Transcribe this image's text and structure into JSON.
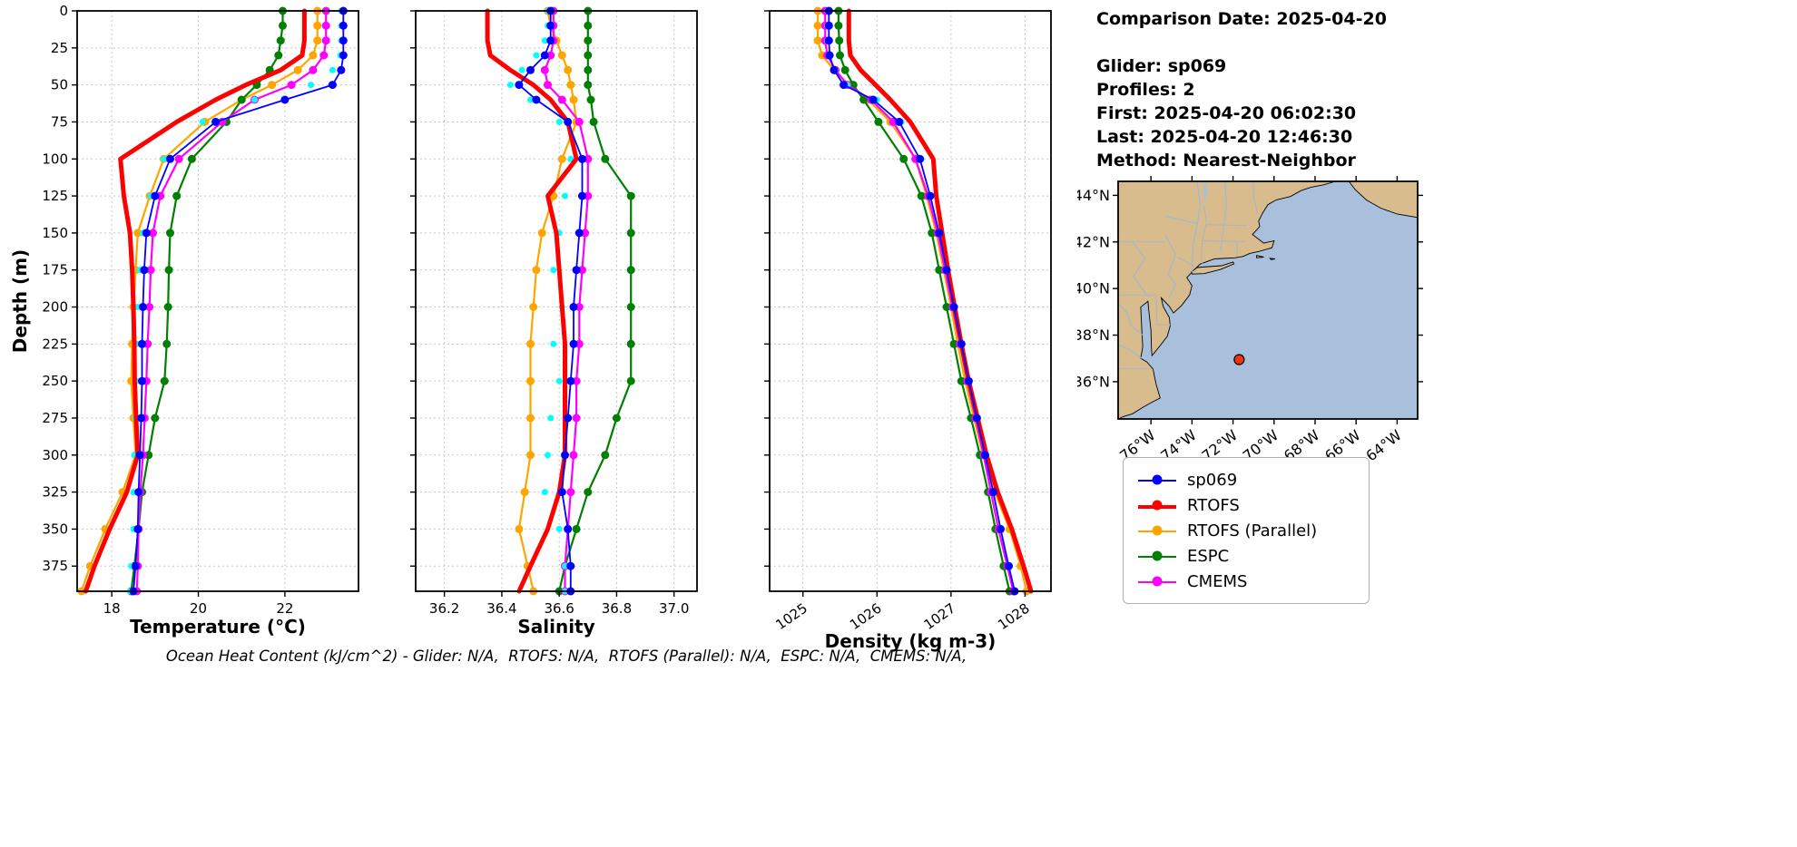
{
  "info": {
    "comparison_date": "Comparison Date: 2025-04-20",
    "glider": "Glider: sp069",
    "profiles": "Profiles: 2",
    "first": "First: 2025-04-20 06:02:30",
    "last": "Last: 2025-04-20 12:46:30",
    "method": "Method: Nearest-Neighbor"
  },
  "ylabel": "Depth (m)",
  "caption": "Ocean Heat Content (kJ/cm^2) - Glider: N/A,  RTOFS: N/A,  RTOFS (Parallel): N/A,  ESPC: N/A,  CMEMS: N/A,",
  "legend": [
    {
      "label": "sp069",
      "color": "#0000ff"
    },
    {
      "label": "RTOFS",
      "color": "#ff0000"
    },
    {
      "label": "RTOFS (Parallel)",
      "color": "#ffa500"
    },
    {
      "label": "ESPC",
      "color": "#008000"
    },
    {
      "label": "CMEMS",
      "color": "#ff00ff"
    }
  ],
  "map": {
    "lat_ticks": [
      "44°N",
      "42°N",
      "40°N",
      "38°N",
      "36°N"
    ],
    "lat_tick_values": [
      44,
      42,
      40,
      38,
      36
    ],
    "lon_ticks": [
      "76°W",
      "74°W",
      "72°W",
      "70°W",
      "68°W",
      "66°W",
      "64°W"
    ],
    "lon_tick_values": [
      -76,
      -74,
      -72,
      -70,
      -68,
      -66,
      -64
    ],
    "extent": {
      "lon_min": -77.6,
      "lon_max": -63.0,
      "lat_min": 34.4,
      "lat_max": 44.6
    },
    "marker": {
      "lon": -71.7,
      "lat": 36.95,
      "color": "#ee3311"
    },
    "land_color": "#d8bc8e",
    "ocean_color": "#a8c0dc"
  },
  "chart_data": [
    {
      "type": "line",
      "xlabel": "Temperature (°C)",
      "ylabel": "Depth (m)",
      "xlim": [
        17.2,
        23.7
      ],
      "ylim": [
        0,
        392
      ],
      "xticks": [
        18,
        20,
        22
      ],
      "yticks": [
        0,
        25,
        50,
        75,
        100,
        125,
        150,
        175,
        200,
        225,
        250,
        275,
        300,
        325,
        350,
        375
      ],
      "rotate_xticks": false,
      "grid": true,
      "depths": [
        0,
        10,
        20,
        30,
        40,
        50,
        60,
        75,
        100,
        125,
        150,
        175,
        200,
        225,
        250,
        275,
        300,
        325,
        350,
        375,
        392
      ],
      "series": [
        {
          "name": "RTOFS (Parallel)",
          "color": "#ffa500",
          "lw": 2.2,
          "ms": 4.5,
          "values": [
            22.75,
            22.75,
            22.75,
            22.65,
            22.3,
            21.7,
            21.0,
            20.15,
            19.2,
            18.88,
            18.6,
            18.55,
            18.5,
            18.47,
            18.45,
            18.5,
            18.55,
            18.25,
            17.85,
            17.5,
            17.3
          ]
        },
        {
          "name": "ESPC",
          "color": "#008000",
          "lw": 2.2,
          "ms": 4.5,
          "values": [
            21.95,
            21.95,
            21.9,
            21.85,
            21.65,
            21.35,
            21.0,
            20.65,
            19.85,
            19.5,
            19.35,
            19.32,
            19.3,
            19.27,
            19.22,
            19.0,
            18.85,
            18.7,
            18.62,
            18.52,
            18.45
          ]
        },
        {
          "name": "CMEMS",
          "color": "#ff00ff",
          "lw": 2.2,
          "ms": 4.5,
          "values": [
            22.95,
            22.95,
            22.95,
            22.9,
            22.65,
            22.15,
            21.3,
            20.55,
            19.55,
            19.12,
            18.95,
            18.9,
            18.87,
            18.83,
            18.8,
            18.76,
            18.72,
            18.66,
            18.62,
            18.6,
            18.58
          ]
        },
        {
          "name": "sp069 profile 2",
          "color": "#00ffff",
          "lw": 0,
          "ms": 3.5,
          "values": [
            23.3,
            23.3,
            23.3,
            23.28,
            23.1,
            22.6,
            21.3,
            20.1,
            19.2,
            18.9,
            18.72,
            18.65,
            18.6,
            18.58,
            18.58,
            18.55,
            18.52,
            18.5,
            18.5,
            18.45,
            18.42
          ]
        },
        {
          "name": "RTOFS",
          "color": "#ff0000",
          "lw": 5,
          "ms": 0,
          "values": [
            22.45,
            22.45,
            22.45,
            22.4,
            21.9,
            21.1,
            20.4,
            19.5,
            18.2,
            18.28,
            18.42,
            18.47,
            18.5,
            18.52,
            18.53,
            18.56,
            18.6,
            18.35,
            17.95,
            17.6,
            17.4
          ]
        },
        {
          "name": "sp069",
          "color": "#0000ff",
          "lw": 1.8,
          "ms": 4.5,
          "values": [
            23.35,
            23.35,
            23.35,
            23.35,
            23.3,
            23.1,
            22.0,
            20.4,
            19.35,
            19.0,
            18.8,
            18.75,
            18.72,
            18.7,
            18.7,
            18.68,
            18.65,
            18.62,
            18.6,
            18.55,
            18.5
          ]
        }
      ]
    },
    {
      "type": "line",
      "xlabel": "Salinity",
      "ylabel": "Depth (m)",
      "xlim": [
        36.1,
        37.08
      ],
      "ylim": [
        0,
        392
      ],
      "xticks": [
        36.2,
        36.4,
        36.6,
        36.8,
        37.0
      ],
      "xtick_labels": [
        "36.2",
        "36.4",
        "36.6",
        "36.8",
        "37.0"
      ],
      "yticks": [
        0,
        25,
        50,
        75,
        100,
        125,
        150,
        175,
        200,
        225,
        250,
        275,
        300,
        325,
        350,
        375
      ],
      "rotate_xticks": false,
      "grid": true,
      "depths": [
        0,
        10,
        20,
        30,
        40,
        50,
        60,
        75,
        100,
        125,
        150,
        175,
        200,
        225,
        250,
        275,
        300,
        325,
        350,
        375,
        392
      ],
      "series": [
        {
          "name": "RTOFS (Parallel)",
          "color": "#ffa500",
          "lw": 2.2,
          "ms": 4.5,
          "values": [
            36.56,
            36.57,
            36.59,
            36.61,
            36.63,
            36.64,
            36.65,
            36.66,
            36.61,
            36.58,
            36.54,
            36.52,
            36.51,
            36.5,
            36.5,
            36.5,
            36.5,
            36.48,
            36.46,
            36.49,
            36.51
          ]
        },
        {
          "name": "ESPC",
          "color": "#008000",
          "lw": 2.2,
          "ms": 4.5,
          "values": [
            36.7,
            36.7,
            36.7,
            36.7,
            36.7,
            36.7,
            36.71,
            36.72,
            36.76,
            36.85,
            36.85,
            36.85,
            36.85,
            36.85,
            36.85,
            36.8,
            36.76,
            36.7,
            36.66,
            36.62,
            36.6
          ]
        },
        {
          "name": "CMEMS",
          "color": "#ff00ff",
          "lw": 2.2,
          "ms": 4.5,
          "values": [
            36.58,
            36.58,
            36.58,
            36.57,
            36.55,
            36.56,
            36.61,
            36.67,
            36.7,
            36.7,
            36.69,
            36.68,
            36.67,
            36.67,
            36.66,
            36.66,
            36.65,
            36.64,
            36.63,
            36.62,
            36.62
          ]
        },
        {
          "name": "sp069 profile 2",
          "color": "#00ffff",
          "lw": 0,
          "ms": 3.5,
          "values": [
            36.56,
            36.56,
            36.55,
            36.52,
            36.47,
            36.43,
            36.5,
            36.6,
            36.64,
            36.62,
            36.6,
            36.58,
            36.61,
            36.58,
            36.6,
            36.57,
            36.56,
            36.55,
            36.6,
            36.62,
            36.62
          ]
        },
        {
          "name": "RTOFS",
          "color": "#ff0000",
          "lw": 5,
          "ms": 0,
          "values": [
            36.35,
            36.35,
            36.35,
            36.36,
            36.43,
            36.51,
            36.57,
            36.63,
            36.66,
            36.56,
            36.59,
            36.6,
            36.61,
            36.62,
            36.62,
            36.62,
            36.62,
            36.6,
            36.56,
            36.5,
            36.46
          ]
        },
        {
          "name": "sp069",
          "color": "#0000ff",
          "lw": 1.8,
          "ms": 4.5,
          "values": [
            36.57,
            36.57,
            36.57,
            36.55,
            36.5,
            36.46,
            36.52,
            36.63,
            36.68,
            36.68,
            36.67,
            36.66,
            36.65,
            36.65,
            36.64,
            36.63,
            36.62,
            36.61,
            36.63,
            36.64,
            36.64
          ]
        }
      ]
    },
    {
      "type": "line",
      "xlabel": "Density (kg m-3)",
      "ylabel": "Depth (m)",
      "xlim": [
        1024.55,
        1028.35
      ],
      "ylim": [
        0,
        392
      ],
      "xticks": [
        1025,
        1026,
        1027,
        1028
      ],
      "xtick_labels": [
        "1025",
        "1026",
        "1027",
        "1028"
      ],
      "yticks": [
        0,
        25,
        50,
        75,
        100,
        125,
        150,
        175,
        200,
        225,
        250,
        275,
        300,
        325,
        350,
        375
      ],
      "rotate_xticks": true,
      "grid": true,
      "depths": [
        0,
        10,
        20,
        30,
        40,
        50,
        60,
        75,
        100,
        125,
        150,
        175,
        200,
        225,
        250,
        275,
        300,
        325,
        350,
        375,
        392
      ],
      "series": [
        {
          "name": "RTOFS (Parallel)",
          "color": "#ffa500",
          "lw": 2.2,
          "ms": 4.5,
          "values": [
            1025.2,
            1025.2,
            1025.2,
            1025.26,
            1025.42,
            1025.62,
            1025.88,
            1026.18,
            1026.52,
            1026.67,
            1026.8,
            1026.9,
            1027.0,
            1027.09,
            1027.19,
            1027.31,
            1027.43,
            1027.59,
            1027.79,
            1027.94,
            1028.02
          ]
        },
        {
          "name": "ESPC",
          "color": "#008000",
          "lw": 2.2,
          "ms": 4.5,
          "values": [
            1025.48,
            1025.48,
            1025.49,
            1025.5,
            1025.57,
            1025.68,
            1025.82,
            1026.02,
            1026.36,
            1026.6,
            1026.74,
            1026.84,
            1026.94,
            1027.04,
            1027.14,
            1027.27,
            1027.39,
            1027.5,
            1027.6,
            1027.71,
            1027.79
          ]
        },
        {
          "name": "CMEMS",
          "color": "#ff00ff",
          "lw": 2.2,
          "ms": 4.5,
          "values": [
            1025.3,
            1025.3,
            1025.3,
            1025.33,
            1025.44,
            1025.6,
            1025.92,
            1026.22,
            1026.52,
            1026.69,
            1026.82,
            1026.92,
            1027.02,
            1027.12,
            1027.22,
            1027.33,
            1027.44,
            1027.54,
            1027.64,
            1027.76,
            1027.84
          ]
        },
        {
          "name": "sp069 profile 2",
          "color": "#00ffff",
          "lw": 0,
          "ms": 3.5,
          "values": [
            1025.33,
            1025.33,
            1025.33,
            1025.35,
            1025.44,
            1025.6,
            1026.0,
            1026.33,
            1026.6,
            1026.73,
            1026.85,
            1026.95,
            1027.05,
            1027.15,
            1027.25,
            1027.36,
            1027.47,
            1027.58,
            1027.68,
            1027.79,
            1027.87
          ]
        },
        {
          "name": "RTOFS",
          "color": "#ff0000",
          "lw": 5,
          "ms": 0,
          "values": [
            1025.62,
            1025.62,
            1025.62,
            1025.64,
            1025.78,
            1025.98,
            1026.18,
            1026.45,
            1026.76,
            1026.8,
            1026.88,
            1026.96,
            1027.05,
            1027.14,
            1027.24,
            1027.36,
            1027.48,
            1027.63,
            1027.82,
            1027.98,
            1028.08
          ]
        },
        {
          "name": "sp069",
          "color": "#0000ff",
          "lw": 1.8,
          "ms": 4.5,
          "values": [
            1025.35,
            1025.35,
            1025.35,
            1025.36,
            1025.42,
            1025.55,
            1025.95,
            1026.3,
            1026.58,
            1026.72,
            1026.84,
            1026.94,
            1027.04,
            1027.14,
            1027.24,
            1027.35,
            1027.46,
            1027.57,
            1027.67,
            1027.78,
            1027.86
          ]
        }
      ]
    }
  ]
}
